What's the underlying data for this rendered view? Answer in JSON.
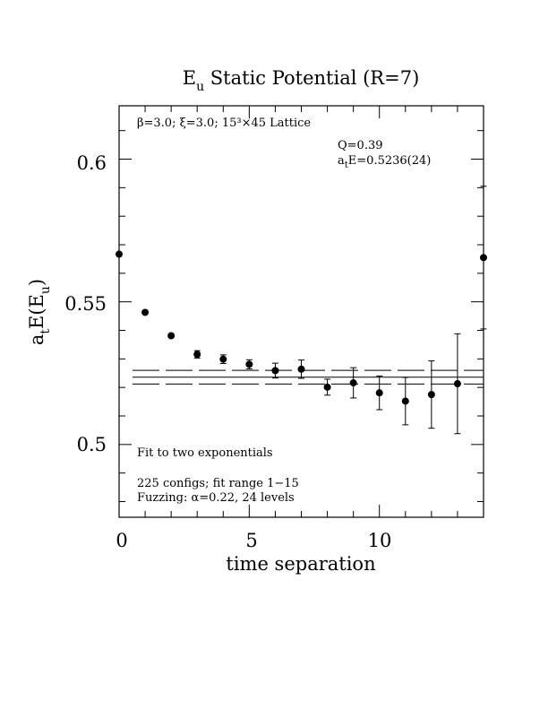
{
  "chart_data": {
    "type": "scatter",
    "title_main": "E",
    "title_sub": "u",
    "title_rest": " Static Potential (R=7)",
    "xlabel": "time separation",
    "ylabel_pre": "a",
    "ylabel_pre_sub": "t",
    "ylabel_mid": "E(E",
    "ylabel_mid_sub": "u",
    "ylabel_post": ")",
    "xlim": [
      0,
      14
    ],
    "ylim": [
      0.4745,
      0.6187
    ],
    "x_ticks": [
      0,
      5,
      10
    ],
    "x_tick_labels": [
      "0",
      "5",
      "10"
    ],
    "y_ticks": [
      0.5,
      0.55,
      0.6
    ],
    "y_tick_labels": [
      "0.5",
      "0.55",
      "0.6"
    ],
    "x_minor_step": 1,
    "y_minor_step": 0.01,
    "points": [
      {
        "x": 0,
        "y": 0.5667,
        "err": 0.0
      },
      {
        "x": 1,
        "y": 0.5463,
        "err": 0.0005
      },
      {
        "x": 2,
        "y": 0.5381,
        "err": 0.0006
      },
      {
        "x": 3,
        "y": 0.5316,
        "err": 0.0013
      },
      {
        "x": 4,
        "y": 0.5299,
        "err": 0.0015
      },
      {
        "x": 5,
        "y": 0.5281,
        "err": 0.0016
      },
      {
        "x": 6,
        "y": 0.5259,
        "err": 0.0026
      },
      {
        "x": 7,
        "y": 0.5264,
        "err": 0.0032
      },
      {
        "x": 8,
        "y": 0.5201,
        "err": 0.0028
      },
      {
        "x": 9,
        "y": 0.5216,
        "err": 0.0053
      },
      {
        "x": 10,
        "y": 0.5181,
        "err": 0.0059
      },
      {
        "x": 11,
        "y": 0.5152,
        "err": 0.0083
      },
      {
        "x": 12,
        "y": 0.5175,
        "err": 0.0118
      },
      {
        "x": 13,
        "y": 0.5213,
        "err": 0.0175
      },
      {
        "x": 14,
        "y": 0.5655,
        "err": 0.025
      }
    ],
    "fit": {
      "center": 0.5236,
      "error": 0.0024
    },
    "annotations": {
      "lattice_params": "β=3.0; ξ=3.0; 15³×45 Lattice",
      "q_value": "Q=0.39",
      "energy_pre": "a",
      "energy_pre_sub": "t",
      "energy_rest": "E=0.5236(24)",
      "fit_type": "Fit to two exponentials",
      "configs": "225 configs; fit range 1−15",
      "fuzzing": "Fuzzing: α=0.22, 24 levels"
    }
  }
}
